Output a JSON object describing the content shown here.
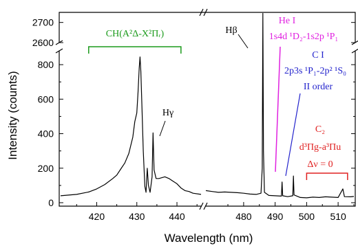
{
  "chart_data": {
    "type": "line",
    "xlabel": "Wavelength (nm)",
    "ylabel": "Intensity (counts)",
    "x_segments": [
      [
        411,
        446
      ],
      [
        468,
        515
      ]
    ],
    "x_ticks": [
      420,
      430,
      440,
      480,
      490,
      500,
      510
    ],
    "x_tick_labels": [
      "420",
      "430",
      "440",
      "480",
      "490",
      "500",
      "510"
    ],
    "y_upper_range": [
      2600,
      2750
    ],
    "y_upper_ticks": [
      2600,
      2700
    ],
    "y_upper_tick_labels": [
      "2600",
      "2700"
    ],
    "y_lower_range": [
      -20,
      880
    ],
    "y_lower_ticks": [
      0,
      200,
      400,
      600,
      800
    ],
    "y_lower_tick_labels": [
      "0",
      "200",
      "400",
      "600",
      "800"
    ],
    "grid": false,
    "colors": {
      "spectrum": "#000000",
      "ch_band": "#1a9a1a",
      "he_line": "#e020e0",
      "c_line": "#2222cc",
      "c2_band": "#e02020"
    },
    "series": [
      {
        "points": [
          [
            411,
            40
          ],
          [
            415,
            48
          ],
          [
            418,
            62
          ],
          [
            420,
            80
          ],
          [
            422,
            105
          ],
          [
            424,
            140
          ],
          [
            425,
            160
          ],
          [
            426,
            195
          ],
          [
            427,
            230
          ],
          [
            428,
            285
          ],
          [
            429,
            380
          ],
          [
            429.5,
            470
          ],
          [
            430,
            520
          ],
          [
            430.3,
            640
          ],
          [
            430.6,
            780
          ],
          [
            430.8,
            845
          ],
          [
            431,
            760
          ],
          [
            431.3,
            540
          ],
          [
            431.6,
            300
          ],
          [
            432,
            95
          ],
          [
            432.3,
            60
          ],
          [
            432.6,
            200
          ],
          [
            432.9,
            100
          ],
          [
            433.3,
            60
          ],
          [
            433.8,
            150
          ],
          [
            434.05,
            405
          ],
          [
            434.3,
            190
          ],
          [
            434.8,
            140
          ],
          [
            435.5,
            140
          ],
          [
            437,
            150
          ],
          [
            438,
            140
          ],
          [
            439,
            125
          ],
          [
            440,
            110
          ],
          [
            441,
            85
          ],
          [
            442,
            70
          ],
          [
            443,
            65
          ],
          [
            444,
            55
          ],
          [
            446,
            48
          ],
          [
            468,
            70
          ],
          [
            470,
            65
          ],
          [
            472,
            60
          ],
          [
            474,
            62
          ],
          [
            476,
            60
          ],
          [
            478,
            58
          ],
          [
            480,
            55
          ],
          [
            482,
            50
          ],
          [
            484,
            48
          ],
          [
            485.5,
            55
          ],
          [
            485.9,
            200
          ],
          [
            486.1,
            2745
          ],
          [
            486.3,
            300
          ],
          [
            486.6,
            60
          ],
          [
            488,
            42
          ],
          [
            490,
            40
          ],
          [
            492,
            38
          ],
          [
            492.2,
            120
          ],
          [
            492.4,
            40
          ],
          [
            494,
            35
          ],
          [
            495.6,
            40
          ],
          [
            495.8,
            155
          ],
          [
            496,
            45
          ],
          [
            498,
            30
          ],
          [
            500,
            28
          ],
          [
            502,
            32
          ],
          [
            504,
            30
          ],
          [
            506,
            34
          ],
          [
            508,
            32
          ],
          [
            510,
            30
          ],
          [
            511.5,
            80
          ],
          [
            512,
            35
          ],
          [
            514,
            34
          ],
          [
            515,
            36
          ]
        ]
      }
    ],
    "annotations": {
      "ch_band_label": "CH(A²Δ-X²Πᵣ)",
      "h_gamma": "Hγ",
      "h_beta": "Hβ",
      "he_line1": "He I",
      "he_line2": "1s4d ¹D₂-1s2p ¹P₁",
      "c_line1": "C I",
      "c_line2": "2p3s ¹P₁-2p² ¹S₀",
      "c_line3": "II order",
      "c2_line1": "C₂",
      "c2_line2": "d³Πg-a³Πu",
      "c2_line3": "Δν = 0"
    },
    "band_markers": {
      "ch_band": [
        418,
        441
      ],
      "c2_band": [
        500,
        513
      ]
    }
  }
}
